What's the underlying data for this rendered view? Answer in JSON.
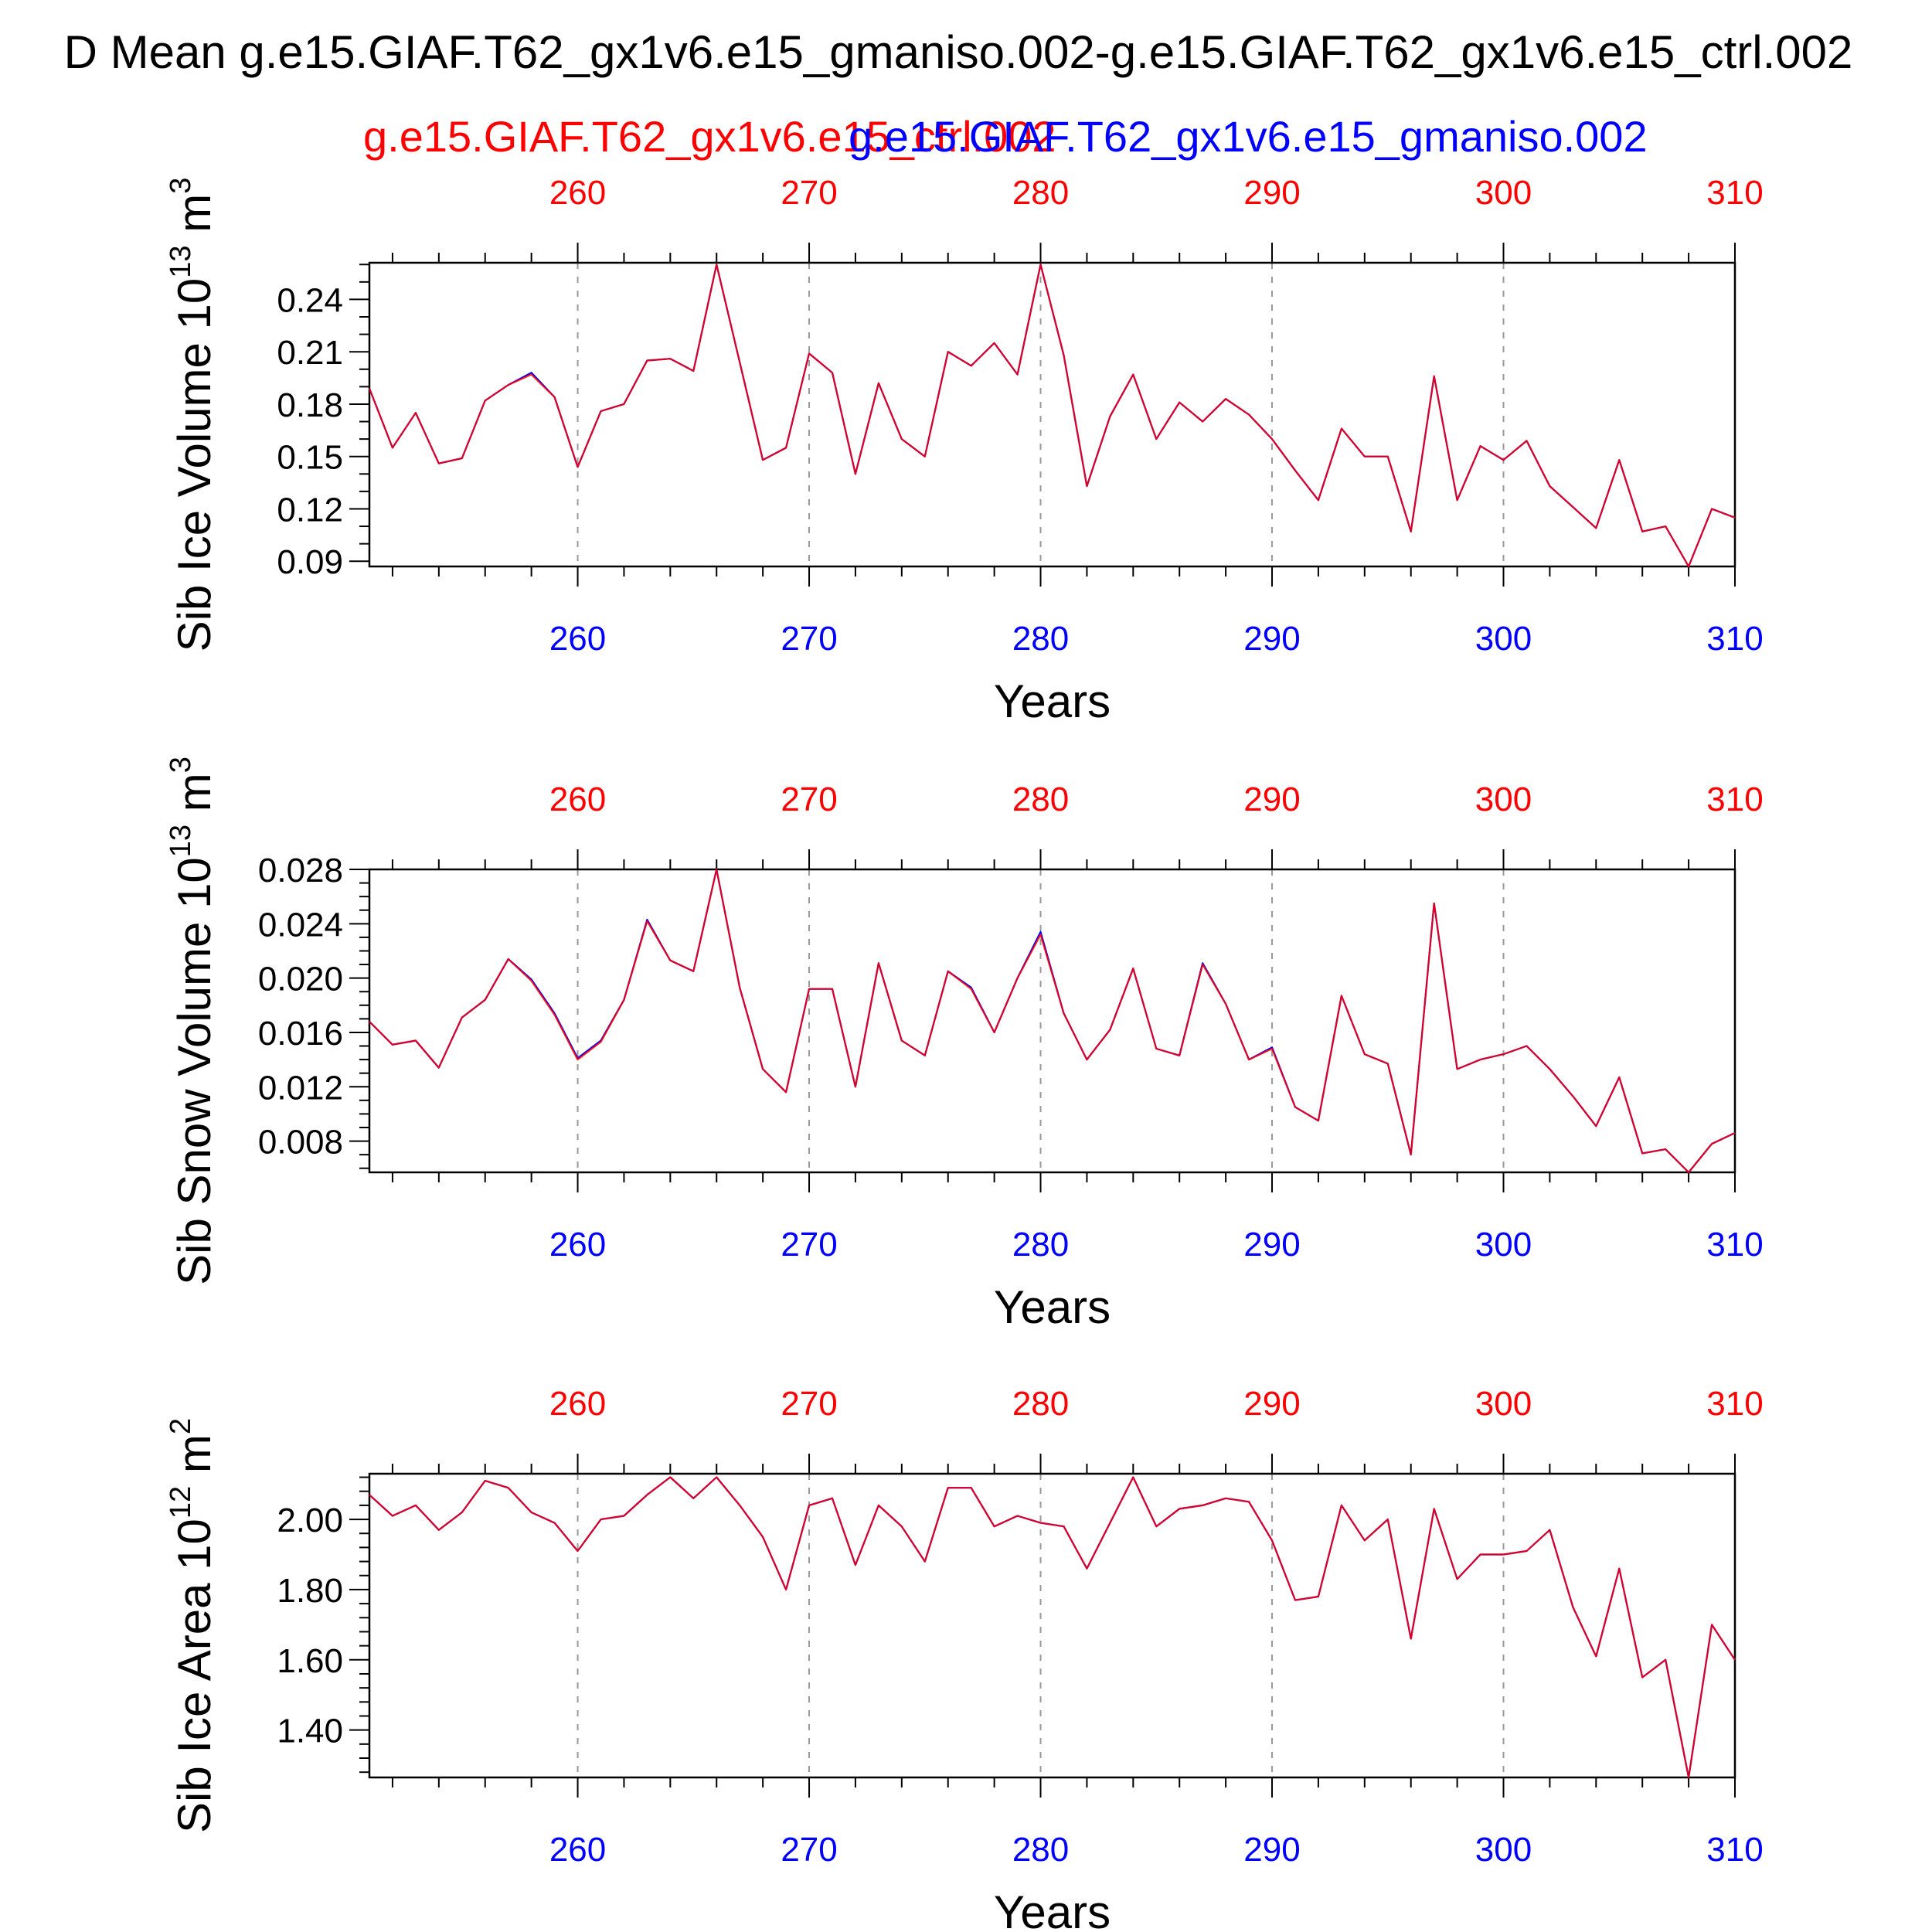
{
  "title": "D Mean g.e15.GIAF.T62_gx1v6.e15_gmaniso.002-g.e15.GIAF.T62_gx1v6.e15_ctrl.002",
  "legend": {
    "red_label": "g.e15.GIAF.T62_gx1v6.e15_ctrl.002",
    "blue_label": "g.e15.GIAF.T62_gx1v6.e15_gmaniso.002"
  },
  "colors": {
    "red": "#ff0000",
    "blue": "#0000ff",
    "axis": "#000000",
    "grid": "#999999"
  },
  "chart_data": [
    {
      "type": "line",
      "name": "sib-ice-volume",
      "ylabel": "Sib Ice Volume 10",
      "yunit_exp": "13",
      "yunit_rest": " m",
      "yunit_pow": "3",
      "xlabel": "Years",
      "xlim": [
        251,
        310
      ],
      "ylim": [
        0.087,
        0.261
      ],
      "yticks": [
        0.09,
        0.12,
        0.15,
        0.18,
        0.21,
        0.24
      ],
      "ytick_labels": [
        "0.09",
        "0.12",
        "0.15",
        "0.18",
        "0.21",
        "0.24"
      ],
      "yminor_step": 0.01,
      "xticks": [
        260,
        270,
        280,
        290,
        300,
        310
      ],
      "xtick_labels": [
        "260",
        "270",
        "280",
        "290",
        "300",
        "310"
      ],
      "x_start": 251,
      "series": [
        {
          "name": "g.e15.GIAF.T62_gx1v6.e15_ctrl.002",
          "color": "red",
          "values": [
            0.189,
            0.155,
            0.175,
            0.146,
            0.149,
            0.182,
            0.191,
            0.197,
            0.184,
            0.144,
            0.176,
            0.18,
            0.205,
            0.206,
            0.199,
            0.26,
            0.204,
            0.148,
            0.155,
            0.209,
            0.198,
            0.14,
            0.192,
            0.16,
            0.15,
            0.21,
            0.202,
            0.215,
            0.197,
            0.26,
            0.208,
            0.133,
            0.173,
            0.197,
            0.16,
            0.181,
            0.17,
            0.183,
            0.174,
            0.16,
            0.142,
            0.125,
            0.166,
            0.15,
            0.15,
            0.107,
            0.196,
            0.125,
            0.156,
            0.148,
            0.159,
            0.133,
            0.121,
            0.109,
            0.148,
            0.107,
            0.11,
            0.087,
            0.12,
            0.115
          ]
        },
        {
          "name": "g.e15.GIAF.T62_gx1v6.e15_gmaniso.002",
          "color": "blue",
          "values": [
            0.189,
            0.155,
            0.175,
            0.146,
            0.149,
            0.182,
            0.191,
            0.198,
            0.184,
            0.144,
            0.176,
            0.18,
            0.205,
            0.206,
            0.199,
            0.26,
            0.204,
            0.148,
            0.155,
            0.209,
            0.198,
            0.14,
            0.192,
            0.16,
            0.15,
            0.21,
            0.202,
            0.215,
            0.197,
            0.26,
            0.208,
            0.133,
            0.173,
            0.197,
            0.16,
            0.181,
            0.17,
            0.183,
            0.174,
            0.16,
            0.142,
            0.125,
            0.166,
            0.15,
            0.15,
            0.107,
            0.196,
            0.125,
            0.156,
            0.148,
            0.159,
            0.133,
            0.121,
            0.109,
            0.148,
            0.107,
            0.11,
            0.087,
            0.12,
            0.115
          ]
        }
      ]
    },
    {
      "type": "line",
      "name": "sib-snow-volume",
      "ylabel": "Sib Snow Volume 10",
      "yunit_exp": "13",
      "yunit_rest": " m",
      "yunit_pow": "3",
      "xlabel": "Years",
      "xlim": [
        251,
        310
      ],
      "ylim": [
        0.0057,
        0.028
      ],
      "yticks": [
        0.008,
        0.012,
        0.016,
        0.02,
        0.024,
        0.028
      ],
      "ytick_labels": [
        "0.008",
        "0.012",
        "0.016",
        "0.020",
        "0.024",
        "0.028"
      ],
      "yminor_step": 0.001,
      "xticks": [
        260,
        270,
        280,
        290,
        300,
        310
      ],
      "xtick_labels": [
        "260",
        "270",
        "280",
        "290",
        "300",
        "310"
      ],
      "x_start": 251,
      "series": [
        {
          "name": "g.e15.GIAF.T62_gx1v6.e15_ctrl.002",
          "color": "red",
          "values": [
            0.0168,
            0.0151,
            0.0154,
            0.0134,
            0.0171,
            0.0184,
            0.0214,
            0.0198,
            0.0173,
            0.014,
            0.0153,
            0.0184,
            0.0242,
            0.0213,
            0.0205,
            0.028,
            0.0193,
            0.0133,
            0.0116,
            0.0192,
            0.0192,
            0.012,
            0.0211,
            0.0154,
            0.0143,
            0.0205,
            0.0192,
            0.016,
            0.02,
            0.0232,
            0.0174,
            0.014,
            0.0162,
            0.0207,
            0.0148,
            0.0143,
            0.021,
            0.0181,
            0.014,
            0.0148,
            0.0105,
            0.0095,
            0.0187,
            0.0144,
            0.0137,
            0.007,
            0.0255,
            0.0133,
            0.014,
            0.0144,
            0.015,
            0.0133,
            0.0113,
            0.0091,
            0.0127,
            0.0071,
            0.0074,
            0.0057,
            0.0078,
            0.0086
          ]
        },
        {
          "name": "g.e15.GIAF.T62_gx1v6.e15_gmaniso.002",
          "color": "blue",
          "values": [
            0.0168,
            0.0151,
            0.0154,
            0.0134,
            0.0171,
            0.0184,
            0.0214,
            0.0199,
            0.0174,
            0.0141,
            0.0154,
            0.0184,
            0.0243,
            0.0213,
            0.0205,
            0.028,
            0.0193,
            0.0133,
            0.0116,
            0.0192,
            0.0192,
            0.012,
            0.0211,
            0.0154,
            0.0143,
            0.0205,
            0.0193,
            0.016,
            0.02,
            0.0234,
            0.0174,
            0.014,
            0.0162,
            0.0207,
            0.0148,
            0.0143,
            0.0211,
            0.0181,
            0.014,
            0.0149,
            0.0105,
            0.0095,
            0.0187,
            0.0144,
            0.0137,
            0.007,
            0.0255,
            0.0133,
            0.014,
            0.0144,
            0.015,
            0.0133,
            0.0113,
            0.0091,
            0.0127,
            0.0071,
            0.0074,
            0.0057,
            0.0078,
            0.0086
          ]
        }
      ]
    },
    {
      "type": "line",
      "name": "sib-ice-area",
      "ylabel": "Sib Ice Area 10",
      "yunit_exp": "12",
      "yunit_rest": " m",
      "yunit_pow": "2",
      "xlabel": "Years",
      "xlim": [
        251,
        310
      ],
      "ylim": [
        1.265,
        2.13
      ],
      "yticks": [
        1.4,
        1.6,
        1.8,
        2.0
      ],
      "ytick_labels": [
        "1.40",
        "1.60",
        "1.80",
        "2.00"
      ],
      "yminor_step": 0.04,
      "xticks": [
        260,
        270,
        280,
        290,
        300,
        310
      ],
      "xtick_labels": [
        "260",
        "270",
        "280",
        "290",
        "300",
        "310"
      ],
      "x_start": 251,
      "series": [
        {
          "name": "g.e15.GIAF.T62_gx1v6.e15_ctrl.002",
          "color": "red",
          "values": [
            2.07,
            2.01,
            2.04,
            1.97,
            2.02,
            2.11,
            2.09,
            2.02,
            1.99,
            1.91,
            2.0,
            2.01,
            2.07,
            2.12,
            2.06,
            2.12,
            2.04,
            1.95,
            1.8,
            2.04,
            2.06,
            1.87,
            2.04,
            1.98,
            1.88,
            2.09,
            2.09,
            1.98,
            2.01,
            1.99,
            1.98,
            1.86,
            1.99,
            2.12,
            1.98,
            2.03,
            2.04,
            2.06,
            2.05,
            1.94,
            1.77,
            1.78,
            2.04,
            1.94,
            2.0,
            1.66,
            2.03,
            1.83,
            1.9,
            1.9,
            1.91,
            1.97,
            1.75,
            1.61,
            1.86,
            1.55,
            1.6,
            1.265,
            1.7,
            1.6
          ]
        },
        {
          "name": "g.e15.GIAF.T62_gx1v6.e15_gmaniso.002",
          "color": "blue",
          "values": [
            2.07,
            2.01,
            2.04,
            1.97,
            2.02,
            2.11,
            2.09,
            2.02,
            1.99,
            1.91,
            2.0,
            2.01,
            2.07,
            2.12,
            2.06,
            2.12,
            2.04,
            1.95,
            1.8,
            2.04,
            2.06,
            1.87,
            2.04,
            1.98,
            1.88,
            2.09,
            2.09,
            1.98,
            2.01,
            1.99,
            1.98,
            1.86,
            1.99,
            2.12,
            1.98,
            2.03,
            2.04,
            2.06,
            2.05,
            1.94,
            1.77,
            1.78,
            2.04,
            1.94,
            2.0,
            1.66,
            2.03,
            1.83,
            1.9,
            1.9,
            1.91,
            1.97,
            1.75,
            1.61,
            1.86,
            1.55,
            1.6,
            1.265,
            1.7,
            1.6
          ]
        }
      ]
    }
  ]
}
